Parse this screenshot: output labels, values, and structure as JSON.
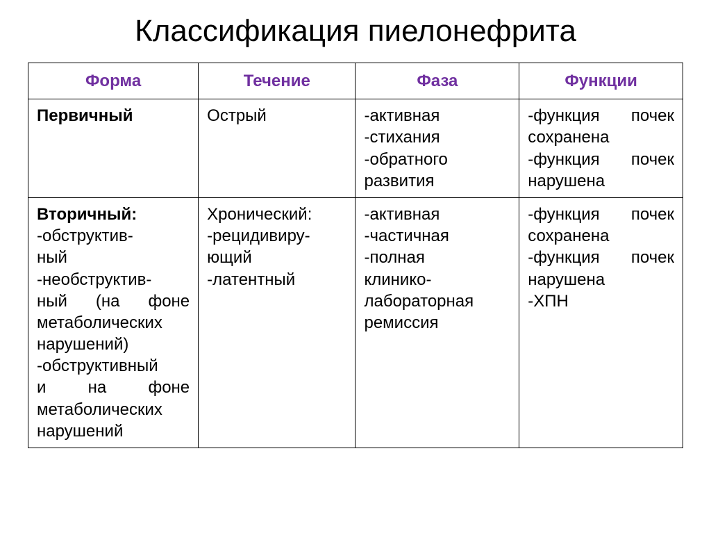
{
  "title": "Классификация пиелонефрита",
  "headers": {
    "col1": "Форма",
    "col2": "Течение",
    "col3": "Фаза",
    "col4": "Функции"
  },
  "row1": {
    "form": "Первичный",
    "course": "Острый",
    "phase_l1": "-активная",
    "phase_l2": "-стихания",
    "phase_l3": "-обратного",
    "phase_l4": "развития",
    "func_l1a": "-функция",
    "func_l1b": "почек",
    "func_l2": "сохранена",
    "func_l3a": "-функция",
    "func_l3b": "почек",
    "func_l4": "нарушена"
  },
  "row2": {
    "form_l1": "Вторичный:",
    "form_l2": "-обструктив-",
    "form_l3": "ный",
    "form_l4": "-необструктив-",
    "form_l5a": "ный",
    "form_l5b": "(на",
    "form_l5c": "фоне",
    "form_l6": "метаболических",
    "form_l7": "нарушений)",
    "form_l8": "-обструктивный",
    "form_l9a": "и",
    "form_l9b": "на",
    "form_l9c": "фоне",
    "form_l10": "метаболических",
    "form_l11": "нарушений",
    "course_l1": "Хронический:",
    "course_l2": "-рецидивиру-",
    "course_l3": "ющий",
    "course_blank": " ",
    "course_l4": "-латентный",
    "phase_l1": "-активная",
    "phase_l2": "-частичная",
    "phase_l3": "-полная",
    "phase_l4": "клинико-",
    "phase_l5": "лабораторная",
    "phase_l6": "ремиссия",
    "func_l1a": "-функция",
    "func_l1b": "почек",
    "func_l2": "сохранена",
    "func_l3a": "-функция",
    "func_l3b": "почек",
    "func_l4": "нарушена",
    "func_l5": "-ХПН"
  }
}
